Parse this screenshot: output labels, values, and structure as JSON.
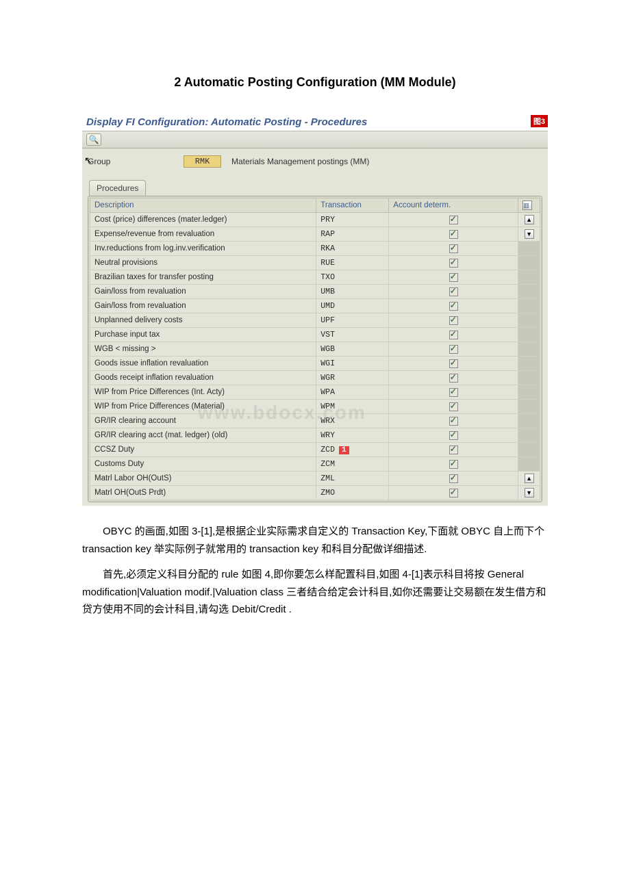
{
  "page_title": "2 Automatic Posting Configuration (MM Module)",
  "sap": {
    "title": "Display FI Configuration: Automatic Posting - Procedures",
    "fig_badge": "图3",
    "group_label": "Group",
    "group_code": "RMK",
    "group_desc": "Materials Management postings (MM)",
    "tab": "Procedures",
    "columns": {
      "description": "Description",
      "transaction": "Transaction",
      "account_determ": "Account determ."
    },
    "rows": [
      {
        "desc": "Cost (price) differences (mater.ledger)",
        "tx": "PRY",
        "ad": true
      },
      {
        "desc": "Expense/revenue from revaluation",
        "tx": "RAP",
        "ad": true
      },
      {
        "desc": "Inv.reductions from log.inv.verification",
        "tx": "RKA",
        "ad": true
      },
      {
        "desc": "Neutral provisions",
        "tx": "RUE",
        "ad": true
      },
      {
        "desc": "Brazilian taxes for transfer posting",
        "tx": "TXO",
        "ad": true
      },
      {
        "desc": "Gain/loss from revaluation",
        "tx": "UMB",
        "ad": true
      },
      {
        "desc": "Gain/loss from revaluation",
        "tx": "UMD",
        "ad": true
      },
      {
        "desc": "Unplanned delivery costs",
        "tx": "UPF",
        "ad": true
      },
      {
        "desc": "Purchase input tax",
        "tx": "VST",
        "ad": true
      },
      {
        "desc": "WGB < missing >",
        "tx": "WGB",
        "ad": true
      },
      {
        "desc": "Goods issue inflation revaluation",
        "tx": "WGI",
        "ad": true
      },
      {
        "desc": "Goods receipt inflation revaluation",
        "tx": "WGR",
        "ad": true
      },
      {
        "desc": "WIP from Price Differences (Int. Acty)",
        "tx": "WPA",
        "ad": true
      },
      {
        "desc": "WIP from Price Differences (Material)",
        "tx": "WPM",
        "ad": true
      },
      {
        "desc": "GR/IR clearing account",
        "tx": "WRX",
        "ad": true
      },
      {
        "desc": "GR/IR clearing acct (mat. ledger) (old)",
        "tx": "WRY",
        "ad": true
      },
      {
        "desc": "CCSZ Duty",
        "tx": "ZCD",
        "ad": true,
        "badge": "1"
      },
      {
        "desc": "Customs Duty",
        "tx": "ZCM",
        "ad": true
      },
      {
        "desc": "Matrl Labor OH(OutS)",
        "tx": "ZML",
        "ad": true
      },
      {
        "desc": "Matrl  OH(OutS Prdt)",
        "tx": "ZMO",
        "ad": true
      }
    ]
  },
  "watermark": "www.bdocx.com",
  "para1": "OBYC 的画面,如图 3-[1],是根据企业实际需求自定义的 Transaction Key,下面就 OBYC 自上而下个 transaction key 举实际例子就常用的 transaction key 和科目分配做详细描述.",
  "para2": "首先,必须定义科目分配的 rule 如图 4,即你要怎么样配置科目,如图 4-[1]表示科目将按 General modification|Valuation modif.|Valuation class 三者结合给定会计科目,如你还需要让交易额在发生借方和贷方使用不同的会计科目,请勾选 Debit/Credit ."
}
